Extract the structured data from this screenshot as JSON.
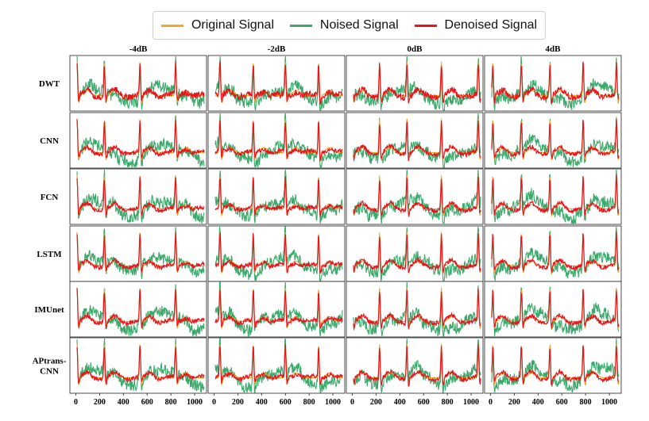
{
  "legend": {
    "items": [
      {
        "label": "Original Signal",
        "color": "#f5a623"
      },
      {
        "label": "Noised Signal",
        "color": "#3aaa6a"
      },
      {
        "label": "Denoised Signal",
        "color": "#e8141b"
      }
    ]
  },
  "chart_data": {
    "type": "line",
    "columns": [
      "-4dB",
      "-2dB",
      "0dB",
      "4dB"
    ],
    "rows": [
      "DWT",
      "CNN",
      "FCN",
      "LSTM",
      "IMUnet",
      "APtrans-\nCNN"
    ],
    "x_ticks": [
      0,
      200,
      400,
      600,
      800,
      1000
    ],
    "xlim": [
      -50,
      1100
    ],
    "series_names": [
      "Original Signal",
      "Noised Signal",
      "Denoised Signal"
    ],
    "series_colors": [
      "#f5a623",
      "#3aaa6a",
      "#e8141b"
    ],
    "grid": false,
    "legend_position": "top-center"
  }
}
